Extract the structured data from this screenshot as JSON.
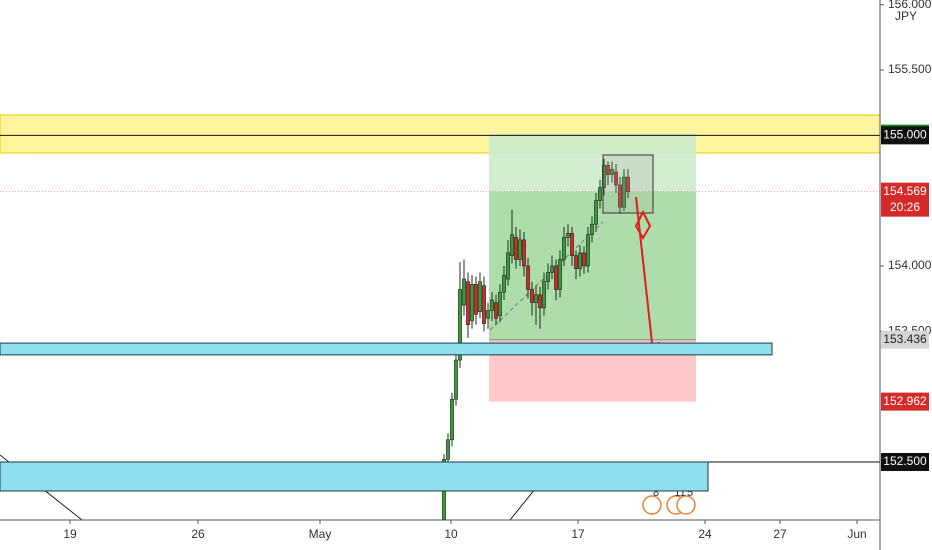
{
  "chart_data": {
    "type": "candlestick",
    "currency": "JPY",
    "countdown": "20:26",
    "up_color": "#3c9a3c",
    "down_color": "#d42a2a",
    "xlim": [
      0,
      220
    ],
    "ylim": [
      152.056,
      156.036
    ],
    "xticks": [
      {
        "value": 17.5,
        "label": "19"
      },
      {
        "value": 49.5,
        "label": "26"
      },
      {
        "value": 80,
        "label": "May"
      },
      {
        "value": 112.75,
        "label": "10"
      },
      {
        "value": 144.5,
        "label": "17"
      },
      {
        "value": 176.25,
        "label": "24"
      },
      {
        "value": 195,
        "label": "27"
      },
      {
        "value": 214.25,
        "label": "Jun"
      }
    ],
    "yticks": [
      {
        "value": 156,
        "label": "156.000"
      },
      {
        "value": 155.5,
        "label": "155.500"
      },
      {
        "value": 154,
        "label": "154.000"
      },
      {
        "value": 153.5,
        "label": "153.500"
      }
    ],
    "x": [
      111,
      112,
      113,
      114,
      115,
      116,
      117,
      118,
      119,
      120,
      121,
      122,
      123,
      124,
      125,
      126,
      127,
      128,
      129,
      130,
      131,
      132,
      133,
      134,
      135,
      136,
      137,
      138,
      139,
      140,
      141,
      142,
      143,
      144,
      145,
      146,
      147,
      148,
      149,
      150,
      151,
      152,
      153,
      154,
      155,
      156,
      157
    ],
    "open": [
      152.06,
      152.52,
      152.67,
      152.98,
      153.28,
      153.7,
      153.88,
      153.58,
      153.86,
      153.65,
      153.85,
      153.6,
      153.66,
      153.72,
      153.62,
      153.8,
      153.9,
      154.08,
      154.22,
      154.05,
      154.2,
      154.0,
      153.82,
      153.72,
      153.78,
      153.68,
      153.88,
      153.95,
      154.0,
      153.82,
      154.05,
      154.22,
      154.25,
      154.08,
      153.98,
      154.1,
      154.0,
      154.24,
      154.32,
      154.5,
      154.6,
      154.77,
      154.7,
      154.72,
      154.62,
      154.45,
      154.68
    ],
    "high": [
      152.56,
      152.72,
      153.03,
      153.35,
      154.03,
      154.05,
      153.95,
      153.93,
      153.92,
      153.95,
      153.92,
      153.72,
      153.8,
      153.78,
      153.86,
      154.0,
      154.2,
      154.43,
      154.3,
      154.28,
      154.26,
      154.06,
      153.88,
      153.85,
      153.84,
      153.95,
      154.02,
      154.08,
      154.05,
      154.12,
      154.3,
      154.32,
      154.3,
      154.12,
      154.16,
      154.15,
      154.3,
      154.38,
      154.56,
      154.66,
      154.82,
      154.8,
      154.8,
      154.78,
      154.68,
      154.74,
      154.74
    ],
    "low": [
      152.02,
      152.47,
      152.62,
      152.93,
      153.22,
      153.62,
      153.45,
      153.52,
      153.55,
      153.6,
      153.5,
      153.52,
      153.58,
      153.55,
      153.57,
      153.74,
      153.85,
      154.02,
      153.98,
      154.0,
      153.92,
      153.75,
      153.62,
      153.55,
      153.52,
      153.62,
      153.82,
      153.9,
      153.74,
      153.76,
      154.0,
      154.15,
      154.0,
      153.9,
      153.92,
      153.94,
      153.95,
      154.18,
      154.26,
      154.44,
      154.54,
      154.62,
      154.64,
      154.56,
      154.4,
      154.42,
      154.52
    ],
    "close": [
      152.52,
      152.67,
      152.98,
      153.28,
      153.82,
      153.9,
      153.55,
      153.86,
      153.63,
      153.88,
      153.56,
      153.66,
      153.74,
      153.6,
      153.8,
      153.93,
      154.1,
      154.24,
      154.05,
      154.2,
      154.0,
      153.82,
      153.72,
      153.78,
      153.68,
      153.88,
      153.95,
      154.0,
      153.82,
      154.05,
      154.22,
      154.25,
      154.08,
      153.98,
      154.1,
      154.0,
      154.24,
      154.32,
      154.5,
      154.6,
      154.77,
      154.7,
      154.74,
      154.62,
      154.45,
      154.68,
      154.569
    ],
    "zones": [
      {
        "x0": 0,
        "x1": 220,
        "from": 154.865,
        "to": 155.156,
        "color": "#fff59d",
        "border": "#e6c800"
      },
      {
        "x0": 0,
        "x1": 193,
        "from": 153.32,
        "to": 153.41,
        "color": "#8fe0ee",
        "border": "#1a3a44"
      },
      {
        "x0": 0,
        "x1": 177,
        "from": 152.278,
        "to": 152.5,
        "color": "#8fe0ee",
        "border": "#1a3a44"
      }
    ],
    "hlines": [
      {
        "value": 155,
        "color": "#111"
      },
      {
        "value": 152.5,
        "color": "#111"
      }
    ],
    "position": {
      "x0": 122.25,
      "x1": 174,
      "entry": 153.436,
      "target": 155.013,
      "stop": 152.962,
      "profit_color": "#9fd89a",
      "loss_color": "#ffc9c9"
    },
    "price_tags": [
      {
        "value": 155.013,
        "color": "#0c8a14",
        "text_color": "#fff"
      },
      {
        "value": 155,
        "label": "155.000",
        "color": "#111",
        "text_color": "#fff"
      },
      {
        "value": 154.569,
        "color": "#d42a2a",
        "text_color": "#fff"
      },
      {
        "value": 153.436,
        "color": "#d6d6d6",
        "text_color": "#222"
      },
      {
        "value": 152.962,
        "color": "#d42a2a",
        "text_color": "#fff"
      },
      {
        "value": 152.5,
        "label": "152.500",
        "color": "#111",
        "text_color": "#fff"
      }
    ],
    "event_labels": [
      "8",
      "11",
      "5"
    ]
  }
}
